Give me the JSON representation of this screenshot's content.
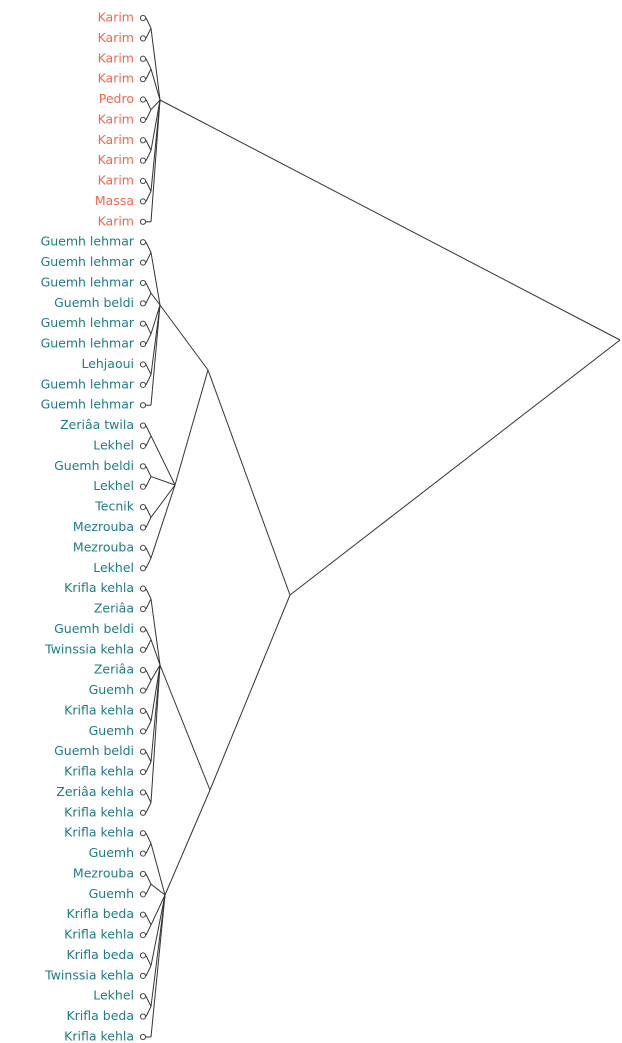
{
  "leaves": [
    {
      "label": "Karim",
      "color": "#f0694f"
    },
    {
      "label": "Karim",
      "color": "#f0694f"
    },
    {
      "label": "Karim",
      "color": "#f0694f"
    },
    {
      "label": "Karim",
      "color": "#f0694f"
    },
    {
      "label": "Pedro",
      "color": "#f0694f"
    },
    {
      "label": "Karim",
      "color": "#f0694f"
    },
    {
      "label": "Karim",
      "color": "#f0694f"
    },
    {
      "label": "Karim",
      "color": "#f0694f"
    },
    {
      "label": "Karim",
      "color": "#f0694f"
    },
    {
      "label": "Massa",
      "color": "#f0694f"
    },
    {
      "label": "Karim",
      "color": "#f0694f"
    },
    {
      "label": "Guemh lehmar",
      "color": "#1d7d84"
    },
    {
      "label": "Guemh lehmar",
      "color": "#1d7d84"
    },
    {
      "label": "Guemh lehmar",
      "color": "#1d7d84"
    },
    {
      "label": "Guemh beldi",
      "color": "#1d7d84"
    },
    {
      "label": "Guemh lehmar",
      "color": "#1d7d84"
    },
    {
      "label": "Guemh lehmar",
      "color": "#1d7d84"
    },
    {
      "label": "Lehjaoui",
      "color": "#1d7d84"
    },
    {
      "label": "Guemh lehmar",
      "color": "#1d7d84"
    },
    {
      "label": "Guemh lehmar",
      "color": "#1d7d84"
    },
    {
      "label": "Zeriâa twila",
      "color": "#1d7d84"
    },
    {
      "label": "Lekhel",
      "color": "#1d7d84"
    },
    {
      "label": "Guemh beldi",
      "color": "#1d7d84"
    },
    {
      "label": "Lekhel",
      "color": "#1d7d84"
    },
    {
      "label": "Tecnik",
      "color": "#1d7d84"
    },
    {
      "label": "Mezrouba",
      "color": "#1d7d84"
    },
    {
      "label": "Mezrouba",
      "color": "#1d7d84"
    },
    {
      "label": "Lekhel",
      "color": "#1d7d84"
    },
    {
      "label": "Krifla kehla",
      "color": "#1d7d84"
    },
    {
      "label": "Zeriâa",
      "color": "#1d7d84"
    },
    {
      "label": "Guemh beldi",
      "color": "#1d7d84"
    },
    {
      "label": "Twinssia kehla",
      "color": "#1d7d84"
    },
    {
      "label": "Zeriâa",
      "color": "#1d7d84"
    },
    {
      "label": "Guemh",
      "color": "#1d7d84"
    },
    {
      "label": "Krifla kehla",
      "color": "#1d7d84"
    },
    {
      "label": "Guemh",
      "color": "#1d7d84"
    },
    {
      "label": "Guemh beldi",
      "color": "#1d7d84"
    },
    {
      "label": "Krifla kehla",
      "color": "#1d7d84"
    },
    {
      "label": "Zeriâa kehla",
      "color": "#1d7d84"
    },
    {
      "label": "Krifla kehla",
      "color": "#1d7d84"
    },
    {
      "label": "Krifla kehla",
      "color": "#1d7d84"
    },
    {
      "label": "Guemh",
      "color": "#1d7d84"
    },
    {
      "label": "Mezrouba",
      "color": "#1d7d84"
    },
    {
      "label": "Guemh",
      "color": "#1d7d84"
    },
    {
      "label": "Krifla beda",
      "color": "#1d7d84"
    },
    {
      "label": "Krifla kehla",
      "color": "#1d7d84"
    },
    {
      "label": "Krifla beda",
      "color": "#1d7d84"
    },
    {
      "label": "Twinssia kehla",
      "color": "#1d7d84"
    },
    {
      "label": "Lekhel",
      "color": "#1d7d84"
    },
    {
      "label": "Krifla beda",
      "color": "#1d7d84"
    },
    {
      "label": "Krifla kehla",
      "color": "#1d7d84"
    }
  ]
}
